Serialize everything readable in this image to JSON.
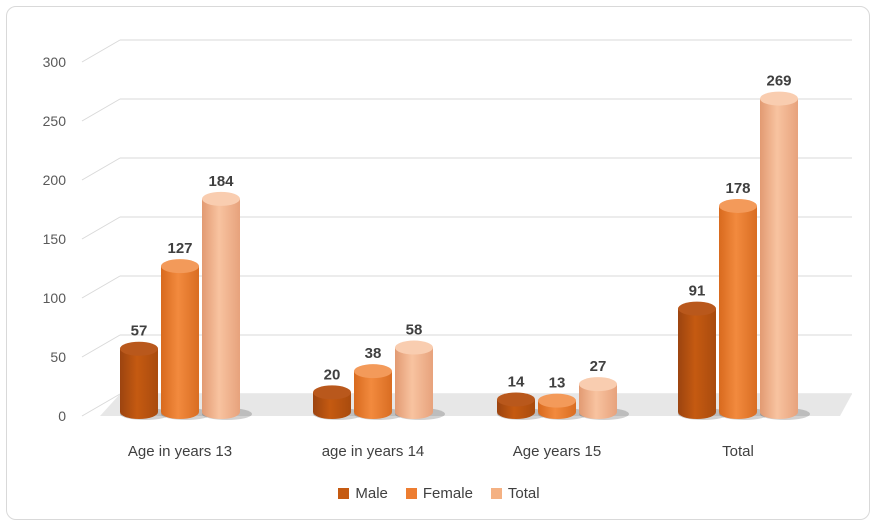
{
  "chart_data": {
    "type": "bar",
    "title": "",
    "xlabel": "",
    "ylabel": "",
    "ylim": [
      0,
      300
    ],
    "yticks": [
      "0",
      "50",
      "100",
      "150",
      "200",
      "250",
      "300"
    ],
    "grid": true,
    "legend_position": "bottom",
    "categories": [
      "Age in years 13",
      "age in years 14",
      "Age years 15",
      "Total"
    ],
    "series": [
      {
        "name": "Male",
        "values": [
          57,
          20,
          14,
          91
        ],
        "color": "#c55a11"
      },
      {
        "name": "Female",
        "values": [
          127,
          38,
          13,
          178
        ],
        "color": "#ed7d31"
      },
      {
        "name": "Total",
        "values": [
          184,
          58,
          27,
          269
        ],
        "color": "#f4b183"
      }
    ]
  }
}
